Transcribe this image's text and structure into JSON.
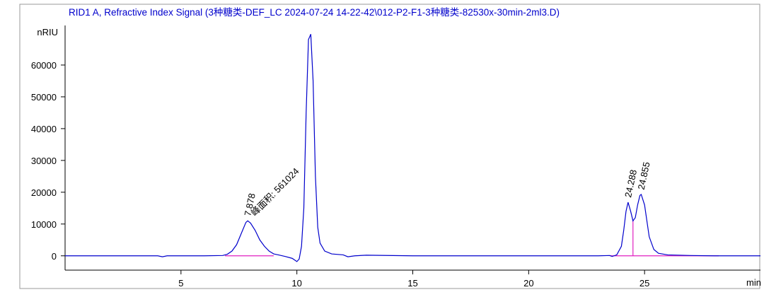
{
  "chart_data": {
    "type": "line",
    "title": "RID1 A, Refractive Index Signal (3种糖类-DEF_LC 2024-07-24 14-22-42\\012-P2-F1-3种糖类-82530x-30min-2ml3.D)",
    "y_label": "nRIU",
    "x_label": "min",
    "x": [
      0,
      1,
      2,
      3,
      4,
      4.2,
      4.4,
      5,
      6,
      6.8,
      7.0,
      7.2,
      7.4,
      7.6,
      7.8,
      7.878,
      8.0,
      8.2,
      8.4,
      8.6,
      8.8,
      9.0,
      9.2,
      9.5,
      9.8,
      10.0,
      10.1,
      10.2,
      10.3,
      10.4,
      10.5,
      10.6,
      10.7,
      10.8,
      10.9,
      11.0,
      11.2,
      11.5,
      12.0,
      12.2,
      12.5,
      13,
      15,
      18,
      20,
      22,
      23,
      23.5,
      23.6,
      23.8,
      24.0,
      24.1,
      24.2,
      24.288,
      24.4,
      24.5,
      24.6,
      24.7,
      24.8,
      24.855,
      25.0,
      25.1,
      25.2,
      25.4,
      25.6,
      26,
      27,
      28,
      29,
      30
    ],
    "values": [
      0,
      0,
      0,
      0,
      0,
      -300,
      0,
      0,
      0,
      100,
      500,
      1500,
      3500,
      7000,
      10500,
      11000,
      10300,
      8000,
      5000,
      3000,
      1500,
      600,
      300,
      -200,
      -800,
      -1800,
      -1000,
      3000,
      15000,
      45000,
      68000,
      69700,
      55000,
      25000,
      9000,
      4000,
      1500,
      600,
      300,
      -300,
      0,
      200,
      0,
      0,
      0,
      0,
      0,
      100,
      -200,
      300,
      3000,
      8000,
      14000,
      16850,
      14000,
      11000,
      12000,
      16000,
      19000,
      19300,
      16000,
      11000,
      6000,
      2000,
      800,
      300,
      100,
      0,
      0,
      0
    ],
    "color": "#0000cc",
    "xlim": [
      0,
      30
    ],
    "ylim": [
      -4500,
      72000
    ],
    "xticks": [
      5,
      10,
      15,
      20,
      25
    ],
    "yticks": [
      0,
      10000,
      20000,
      30000,
      40000,
      50000,
      60000
    ],
    "peak_labels": [
      {
        "x": 7.878,
        "y": 11000
      },
      {
        "x": 24.288,
        "y": 16850
      },
      {
        "x": 24.855,
        "y": 19300
      }
    ],
    "area_label": "峰面积: 561024",
    "baselines": [
      [
        6.9,
        9.0
      ],
      [
        23.5,
        28.2
      ]
    ],
    "drop_lines": [
      {
        "x": 24.5,
        "y": 11000
      }
    ],
    "baseline_color": "#e020c0"
  }
}
